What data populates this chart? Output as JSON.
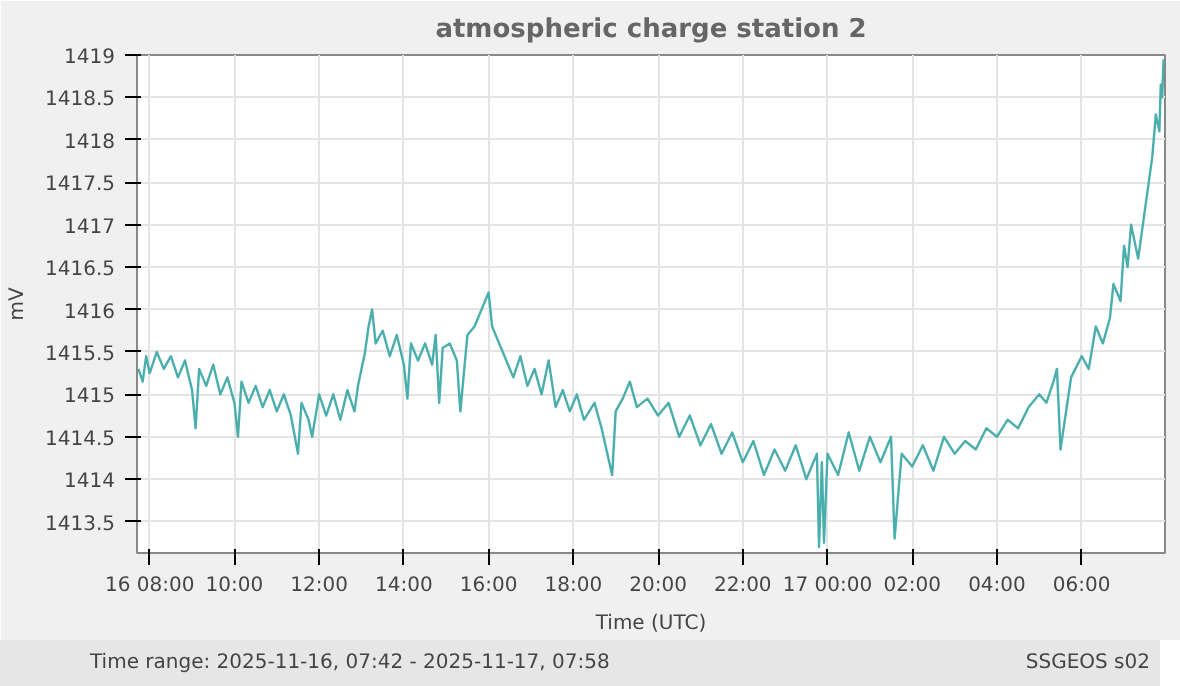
{
  "chart_data": {
    "type": "line",
    "title": "atmospheric charge station 2",
    "xlabel": "Time (UTC)",
    "ylabel": "mV",
    "annotations": [
      "Time range: 2025-11-16, 07:42 - 2025-11-17, 07:58",
      "SSGEOS s02"
    ],
    "x": [
      "2025-11-16T07:44",
      "2025-11-16T07:50",
      "2025-11-16T07:55",
      "2025-11-16T08:00",
      "2025-11-16T08:10",
      "2025-11-16T08:20",
      "2025-11-16T08:30",
      "2025-11-16T08:40",
      "2025-11-16T08:50",
      "2025-11-16T09:00",
      "2025-11-16T09:05",
      "2025-11-16T09:10",
      "2025-11-16T09:20",
      "2025-11-16T09:30",
      "2025-11-16T09:40",
      "2025-11-16T09:50",
      "2025-11-16T10:00",
      "2025-11-16T10:05",
      "2025-11-16T10:10",
      "2025-11-16T10:20",
      "2025-11-16T10:30",
      "2025-11-16T10:40",
      "2025-11-16T10:50",
      "2025-11-16T11:00",
      "2025-11-16T11:10",
      "2025-11-16T11:20",
      "2025-11-16T11:30",
      "2025-11-16T11:35",
      "2025-11-16T11:45",
      "2025-11-16T11:50",
      "2025-11-16T12:00",
      "2025-11-16T12:10",
      "2025-11-16T12:20",
      "2025-11-16T12:30",
      "2025-11-16T12:40",
      "2025-11-16T12:50",
      "2025-11-16T12:55",
      "2025-11-16T13:05",
      "2025-11-16T13:10",
      "2025-11-16T13:15",
      "2025-11-16T13:20",
      "2025-11-16T13:30",
      "2025-11-16T13:40",
      "2025-11-16T13:50",
      "2025-11-16T14:00",
      "2025-11-16T14:05",
      "2025-11-16T14:10",
      "2025-11-16T14:20",
      "2025-11-16T14:30",
      "2025-11-16T14:40",
      "2025-11-16T14:45",
      "2025-11-16T14:50",
      "2025-11-16T14:55",
      "2025-11-16T15:05",
      "2025-11-16T15:15",
      "2025-11-16T15:20",
      "2025-11-16T15:30",
      "2025-11-16T15:40",
      "2025-11-16T15:50",
      "2025-11-16T16:00",
      "2025-11-16T16:05",
      "2025-11-16T16:15",
      "2025-11-16T16:25",
      "2025-11-16T16:35",
      "2025-11-16T16:45",
      "2025-11-16T16:55",
      "2025-11-16T17:05",
      "2025-11-16T17:15",
      "2025-11-16T17:25",
      "2025-11-16T17:35",
      "2025-11-16T17:45",
      "2025-11-16T17:55",
      "2025-11-16T18:05",
      "2025-11-16T18:15",
      "2025-11-16T18:30",
      "2025-11-16T18:40",
      "2025-11-16T18:55",
      "2025-11-16T19:00",
      "2025-11-16T19:10",
      "2025-11-16T19:20",
      "2025-11-16T19:30",
      "2025-11-16T19:45",
      "2025-11-16T20:00",
      "2025-11-16T20:15",
      "2025-11-16T20:30",
      "2025-11-16T20:45",
      "2025-11-16T21:00",
      "2025-11-16T21:15",
      "2025-11-16T21:30",
      "2025-11-16T21:45",
      "2025-11-16T22:00",
      "2025-11-16T22:15",
      "2025-11-16T22:30",
      "2025-11-16T22:45",
      "2025-11-16T23:00",
      "2025-11-16T23:15",
      "2025-11-16T23:30",
      "2025-11-16T23:45",
      "2025-11-16T23:48",
      "2025-11-16T23:52",
      "2025-11-16T23:55",
      "2025-11-17T00:00",
      "2025-11-17T00:15",
      "2025-11-17T00:30",
      "2025-11-17T00:45",
      "2025-11-17T01:00",
      "2025-11-17T01:15",
      "2025-11-17T01:30",
      "2025-11-17T01:35",
      "2025-11-17T01:45",
      "2025-11-17T02:00",
      "2025-11-17T02:15",
      "2025-11-17T02:30",
      "2025-11-17T02:45",
      "2025-11-17T03:00",
      "2025-11-17T03:15",
      "2025-11-17T03:30",
      "2025-11-17T03:45",
      "2025-11-17T04:00",
      "2025-11-17T04:15",
      "2025-11-17T04:30",
      "2025-11-17T04:45",
      "2025-11-17T05:00",
      "2025-11-17T05:10",
      "2025-11-17T05:20",
      "2025-11-17T05:25",
      "2025-11-17T05:30",
      "2025-11-17T05:45",
      "2025-11-17T06:00",
      "2025-11-17T06:10",
      "2025-11-17T06:20",
      "2025-11-17T06:30",
      "2025-11-17T06:40",
      "2025-11-17T06:45",
      "2025-11-17T06:55",
      "2025-11-17T07:00",
      "2025-11-17T07:05",
      "2025-11-17T07:10",
      "2025-11-17T07:20",
      "2025-11-17T07:30",
      "2025-11-17T07:40",
      "2025-11-17T07:45",
      "2025-11-17T07:50",
      "2025-11-17T07:52",
      "2025-11-17T07:54",
      "2025-11-17T07:56"
    ],
    "series": [
      {
        "color": "#4aaead",
        "values": [
          1415.3,
          1415.15,
          1415.45,
          1415.25,
          1415.5,
          1415.3,
          1415.45,
          1415.2,
          1415.4,
          1415.05,
          1414.6,
          1415.3,
          1415.1,
          1415.35,
          1415.0,
          1415.2,
          1414.9,
          1414.5,
          1415.15,
          1414.9,
          1415.1,
          1414.85,
          1415.05,
          1414.8,
          1415.0,
          1414.75,
          1414.3,
          1414.9,
          1414.7,
          1414.5,
          1415.0,
          1414.75,
          1415.0,
          1414.7,
          1415.05,
          1414.8,
          1415.1,
          1415.5,
          1415.8,
          1416.0,
          1415.6,
          1415.75,
          1415.45,
          1415.7,
          1415.35,
          1414.95,
          1415.6,
          1415.4,
          1415.6,
          1415.35,
          1415.7,
          1414.9,
          1415.55,
          1415.6,
          1415.4,
          1414.8,
          1415.7,
          1415.8,
          1416.0,
          1416.2,
          1415.8,
          1415.6,
          1415.4,
          1415.2,
          1415.45,
          1415.1,
          1415.3,
          1415.0,
          1415.4,
          1414.85,
          1415.05,
          1414.8,
          1415.0,
          1414.7,
          1414.9,
          1414.6,
          1414.05,
          1414.8,
          1414.95,
          1415.15,
          1414.85,
          1414.95,
          1414.75,
          1414.9,
          1414.5,
          1414.75,
          1414.4,
          1414.65,
          1414.3,
          1414.55,
          1414.2,
          1414.45,
          1414.05,
          1414.35,
          1414.1,
          1414.4,
          1414.0,
          1414.3,
          1413.2,
          1414.2,
          1413.25,
          1414.3,
          1414.05,
          1414.55,
          1414.1,
          1414.5,
          1414.2,
          1414.5,
          1413.3,
          1414.3,
          1414.15,
          1414.4,
          1414.1,
          1414.5,
          1414.3,
          1414.45,
          1414.35,
          1414.6,
          1414.5,
          1414.7,
          1414.6,
          1414.85,
          1415.0,
          1414.9,
          1415.15,
          1415.3,
          1414.35,
          1415.2,
          1415.45,
          1415.3,
          1415.8,
          1415.6,
          1415.9,
          1416.3,
          1416.1,
          1416.75,
          1416.5,
          1417.0,
          1416.6,
          1417.2,
          1417.8,
          1418.3,
          1418.1,
          1418.65,
          1418.5,
          1418.95
        ]
      }
    ],
    "xlim": [
      "2025-11-16T07:42",
      "2025-11-17T07:58"
    ],
    "xticks": [
      {
        "value": "2025-11-16T08:00",
        "label": "16 08:00"
      },
      {
        "value": "2025-11-16T10:00",
        "label": "10:00"
      },
      {
        "value": "2025-11-16T12:00",
        "label": "12:00"
      },
      {
        "value": "2025-11-16T14:00",
        "label": "14:00"
      },
      {
        "value": "2025-11-16T16:00",
        "label": "16:00"
      },
      {
        "value": "2025-11-16T18:00",
        "label": "18:00"
      },
      {
        "value": "2025-11-16T20:00",
        "label": "20:00"
      },
      {
        "value": "2025-11-16T22:00",
        "label": "22:00"
      },
      {
        "value": "2025-11-17T00:00",
        "label": "17 00:00"
      },
      {
        "value": "2025-11-17T02:00",
        "label": "02:00"
      },
      {
        "value": "2025-11-17T04:00",
        "label": "04:00"
      },
      {
        "value": "2025-11-17T06:00",
        "label": "06:00"
      }
    ],
    "ylim": [
      1413.13,
      1419
    ],
    "yticks": [
      1413.5,
      1414,
      1414.5,
      1415,
      1415.5,
      1416,
      1416.5,
      1417,
      1417.5,
      1418,
      1418.5,
      1419
    ],
    "grid": true,
    "marker": "none",
    "line_style": "solid"
  }
}
